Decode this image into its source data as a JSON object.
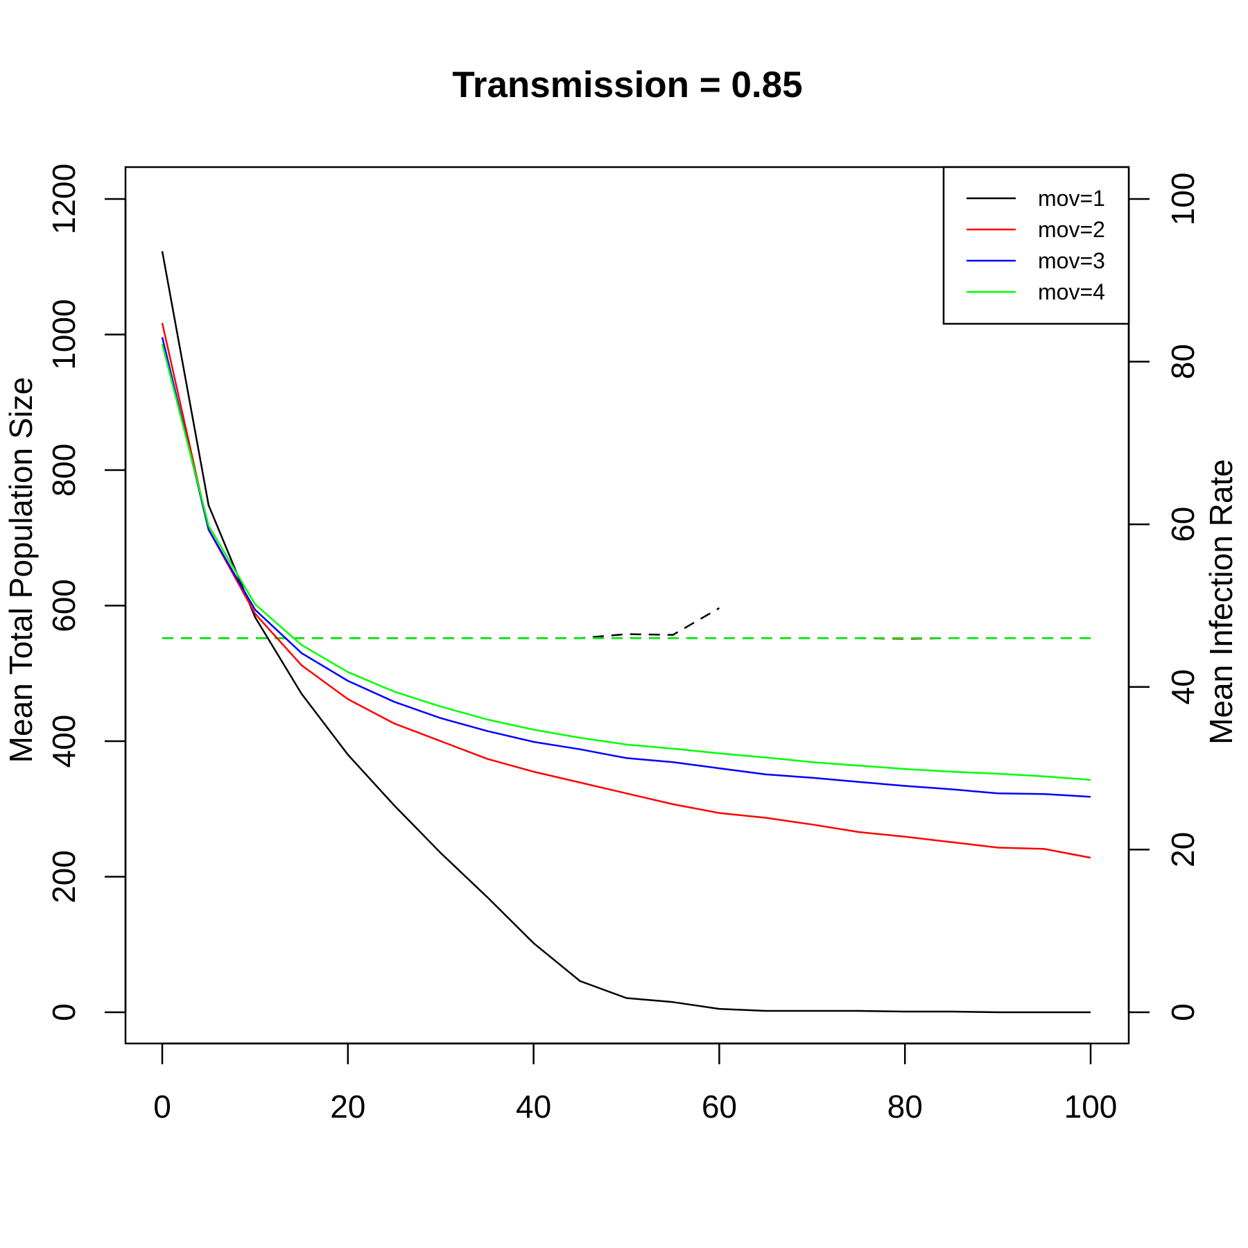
{
  "chart_data": {
    "type": "line",
    "title": "Transmission = 0.85",
    "xlabel": "",
    "ylabel": "Mean Total Population Size",
    "y2label": "Mean Infection Rate",
    "xlim": [
      0,
      100
    ],
    "ylim": [
      0,
      1200
    ],
    "y2lim": [
      0,
      100
    ],
    "x_ticks": [
      "0",
      "20",
      "40",
      "60",
      "80",
      "100"
    ],
    "y_ticks": [
      "0",
      "200",
      "400",
      "600",
      "800",
      "1000",
      "1200"
    ],
    "y2_ticks": [
      "0",
      "20",
      "40",
      "60",
      "80",
      "100"
    ],
    "legend_position": "top-right",
    "x": [
      0,
      5,
      10,
      15,
      20,
      25,
      30,
      35,
      40,
      45,
      50,
      55,
      60,
      65,
      70,
      75,
      80,
      85,
      90,
      95,
      100
    ],
    "series": [
      {
        "name": "mov=1",
        "color": "#000000",
        "values": [
          1123,
          748,
          583,
          470,
          380,
          305,
          235,
          170,
          102,
          46,
          21,
          15,
          5,
          2,
          2,
          2,
          1,
          1,
          0,
          0,
          0
        ]
      },
      {
        "name": "mov=2",
        "color": "#ff0000",
        "values": [
          1017,
          712,
          588,
          512,
          462,
          426,
          400,
          374,
          355,
          339,
          323,
          307,
          294,
          287,
          277,
          266,
          259,
          251,
          243,
          241,
          228
        ]
      },
      {
        "name": "mov=3",
        "color": "#0000ff",
        "values": [
          996,
          712,
          594,
          530,
          489,
          458,
          434,
          415,
          399,
          388,
          375,
          369,
          360,
          351,
          346,
          340,
          334,
          329,
          323,
          322,
          318
        ]
      },
      {
        "name": "mov=4",
        "color": "#00ff00",
        "values": [
          986,
          718,
          602,
          542,
          502,
          473,
          451,
          432,
          417,
          405,
          395,
          389,
          382,
          376,
          369,
          364,
          359,
          355,
          352,
          348,
          343
        ]
      }
    ],
    "infection_series": [
      {
        "name": "mov=1",
        "color": "#000000",
        "x": [
          0,
          5,
          10,
          15,
          20,
          25,
          30,
          35,
          40,
          45,
          50,
          55,
          60
        ],
        "values": [
          46,
          46,
          46,
          46,
          46,
          46,
          46,
          46,
          46,
          46,
          46.5,
          46.4,
          49.7
        ]
      },
      {
        "name": "mov=2",
        "color": "#ff0000",
        "x": [
          0,
          5,
          10,
          15,
          20,
          25,
          30,
          35,
          40,
          45,
          50,
          55,
          60,
          65,
          70,
          75,
          80,
          85,
          90,
          95,
          100
        ],
        "values": [
          46,
          46,
          46,
          46,
          46,
          46,
          46,
          46,
          46,
          46,
          46,
          46,
          46,
          46,
          46,
          46,
          45.9,
          46,
          46,
          46,
          46
        ]
      },
      {
        "name": "mov=3",
        "color": "#0000ff",
        "x": [
          0,
          5,
          10,
          15,
          20,
          25,
          30,
          35,
          40,
          45,
          50,
          55,
          60,
          65,
          70,
          75,
          80,
          85,
          90,
          95,
          100
        ],
        "values": [
          46,
          46,
          46,
          46,
          46,
          46,
          46,
          46,
          46,
          46,
          46,
          46,
          46,
          46,
          46,
          46,
          46,
          46,
          46,
          46,
          46
        ]
      },
      {
        "name": "mov=4",
        "color": "#00ff00",
        "x": [
          0,
          5,
          10,
          15,
          20,
          25,
          30,
          35,
          40,
          45,
          50,
          55,
          60,
          65,
          70,
          75,
          80,
          85,
          90,
          95,
          100
        ],
        "values": [
          46,
          46,
          46,
          46,
          46,
          46,
          46,
          46,
          46,
          46,
          46,
          46,
          46,
          46,
          46,
          46,
          46,
          46,
          46,
          46,
          46
        ]
      }
    ]
  }
}
